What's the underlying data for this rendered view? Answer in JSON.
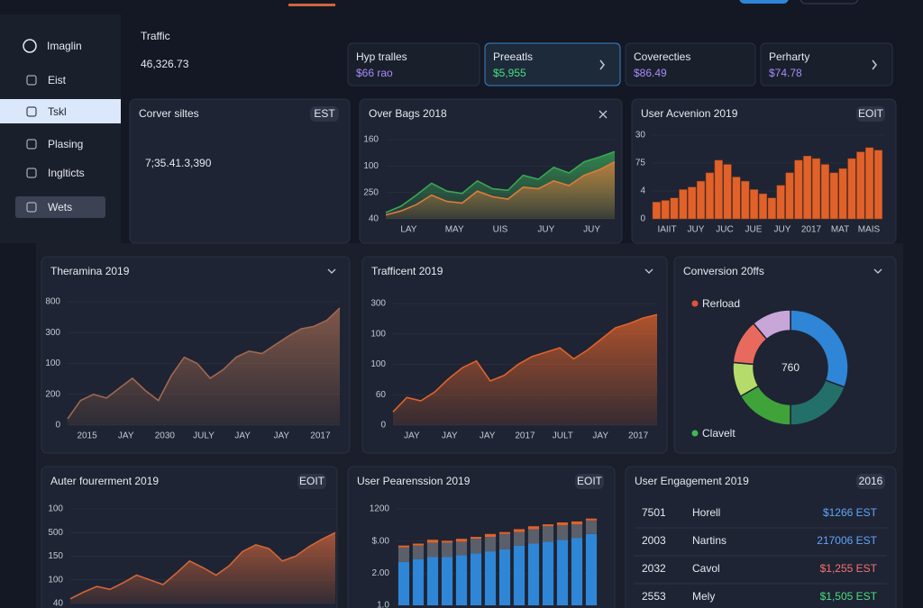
{
  "sidebar": {
    "brand": "Imaglin",
    "items": [
      "Eist",
      "Tskl",
      "Plasing",
      "Inglticts",
      "Wets"
    ],
    "active": 1
  },
  "header": {
    "title": "Traffic",
    "value": "46,326.73"
  },
  "stats": {
    "selected": 1,
    "cards": [
      {
        "label": "Hyp tralles",
        "value": "$66 rao",
        "color": "#a78bfa"
      },
      {
        "label": "Preeatls",
        "value": "$5,955",
        "color": "#4ade80"
      },
      {
        "label": "Coverecties",
        "value": "$86.49",
        "color": "#a78bfa"
      },
      {
        "label": "Perharty",
        "value": "$74.78",
        "color": "#a78bfa"
      }
    ]
  },
  "panels": [
    {
      "kind": "big",
      "title": "Corver siltes",
      "badge": "EST",
      "value": "7;35.41.3,390"
    },
    {
      "kind": "area",
      "title": "Over Bags 2018",
      "y_labels": [
        "40",
        "250",
        "100",
        "160"
      ],
      "x_labels": [
        "LAY",
        "MAY",
        "UIS",
        "JUY",
        "JUY"
      ],
      "ylim": [
        0,
        100
      ],
      "series": [
        {
          "color": "#3aa655",
          "values": [
            8,
            16,
            30,
            45,
            35,
            32,
            48,
            38,
            36,
            55,
            50,
            65,
            58,
            72,
            78,
            85
          ]
        },
        {
          "color": "#e07b39",
          "values": [
            5,
            10,
            18,
            30,
            22,
            20,
            35,
            28,
            25,
            40,
            38,
            48,
            42,
            55,
            62,
            72
          ]
        }
      ]
    },
    {
      "kind": "bars",
      "title": "User Acvenion 2019",
      "badge": "EOIT",
      "y_labels": [
        "0",
        "4",
        "75",
        "30"
      ],
      "x_labels": [
        "IAIIT",
        "JUY",
        "JUC",
        "JUE",
        "JUY",
        "2017",
        "MAT",
        "MAIS"
      ],
      "ylim": [
        0,
        100
      ],
      "series": [
        {
          "color": "#e0622a",
          "values": [
            20,
            22,
            25,
            35,
            38,
            45,
            55,
            70,
            65,
            50,
            45,
            35,
            30,
            25,
            40,
            55,
            70,
            75,
            72,
            65,
            55,
            60,
            72,
            80,
            85,
            82
          ]
        }
      ]
    },
    {
      "kind": "area",
      "title": "Theramina 2019",
      "y_labels": [
        "0",
        "200",
        "100",
        "300",
        "800"
      ],
      "x_labels": [
        "2015",
        "JAY",
        "2030",
        "JULY",
        "JAY",
        "JAY",
        "2017"
      ],
      "ylim": [
        0,
        100
      ],
      "series": [
        {
          "color": "#a0684f",
          "values": [
            5,
            20,
            25,
            22,
            30,
            38,
            28,
            20,
            40,
            55,
            50,
            38,
            45,
            55,
            60,
            58,
            65,
            72,
            78,
            80,
            85,
            95
          ]
        }
      ]
    },
    {
      "kind": "area",
      "title": "Trafficent 2019",
      "y_labels": [
        "0",
        "60",
        "100",
        "100",
        "300"
      ],
      "x_labels": [
        "JAY",
        "JAY",
        "JAY",
        "2017",
        "JULT",
        "JAY",
        "2017"
      ],
      "ylim": [
        0,
        110
      ],
      "series": [
        {
          "color": "#e0622a",
          "values": [
            12,
            25,
            22,
            30,
            42,
            52,
            58,
            40,
            45,
            55,
            62,
            66,
            70,
            60,
            68,
            78,
            88,
            92,
            97,
            100
          ]
        }
      ]
    },
    {
      "kind": "donut",
      "title": "Conversion 20ffs",
      "center": "760",
      "legend": [
        {
          "label": "Rerload",
          "color": "#e0533a"
        },
        {
          "label": "Clavelt",
          "color": "#3fb950"
        }
      ],
      "segments": [
        {
          "color": "#2f86d6",
          "value": 110
        },
        {
          "color": "#23706a",
          "value": 70
        },
        {
          "color": "#3fa33a",
          "value": 60
        },
        {
          "color": "#b5dc6a",
          "value": 35
        },
        {
          "color": "#e86a5e",
          "value": 45
        },
        {
          "color": "#c9a6d8",
          "value": 40
        }
      ]
    },
    {
      "kind": "area",
      "title": "Auter fourerment 2019",
      "badge": "EOIT",
      "y_labels": [
        "40",
        "100",
        "150",
        "500",
        "100"
      ],
      "ylim": [
        0,
        100
      ],
      "series": [
        {
          "color": "#d0653a",
          "values": [
            5,
            12,
            18,
            15,
            22,
            30,
            25,
            20,
            32,
            45,
            38,
            30,
            40,
            55,
            62,
            58,
            45,
            50,
            60,
            68,
            75
          ]
        }
      ]
    },
    {
      "kind": "stacked",
      "title": "User Pearenssion 2019",
      "badge": "EOIT",
      "y_labels": [
        "1.0",
        "2.00",
        "$.00",
        "1200"
      ],
      "ylim": [
        0,
        100
      ],
      "series": [
        {
          "color": "#2f86d6",
          "values": [
            45,
            48,
            50,
            50,
            52,
            54,
            56,
            58,
            62,
            64,
            66,
            68,
            70,
            74
          ]
        },
        {
          "color": "#5b5f6a",
          "values": [
            15,
            14,
            15,
            15,
            14,
            15,
            15,
            16,
            14,
            15,
            16,
            15,
            14,
            14
          ]
        },
        {
          "color": "#e0622a",
          "values": [
            2,
            2,
            3,
            2,
            3,
            2,
            3,
            2,
            3,
            3,
            2,
            3,
            3,
            2
          ]
        }
      ]
    },
    {
      "kind": "table",
      "title": "User Engagement 2019",
      "badge": "2016",
      "rows": [
        {
          "cells": [
            "7501",
            "Horell",
            "$1266 EST"
          ],
          "color": "#60a5fa"
        },
        {
          "cells": [
            "2003",
            "Nartins",
            "217006 EST"
          ],
          "color": "#60a5fa"
        },
        {
          "cells": [
            "2032",
            "Cavol",
            "$1,255 EST"
          ],
          "color": "#f87171"
        },
        {
          "cells": [
            "2553",
            "Mely",
            "$1,505 EST"
          ],
          "color": "#4ade80"
        }
      ]
    }
  ]
}
